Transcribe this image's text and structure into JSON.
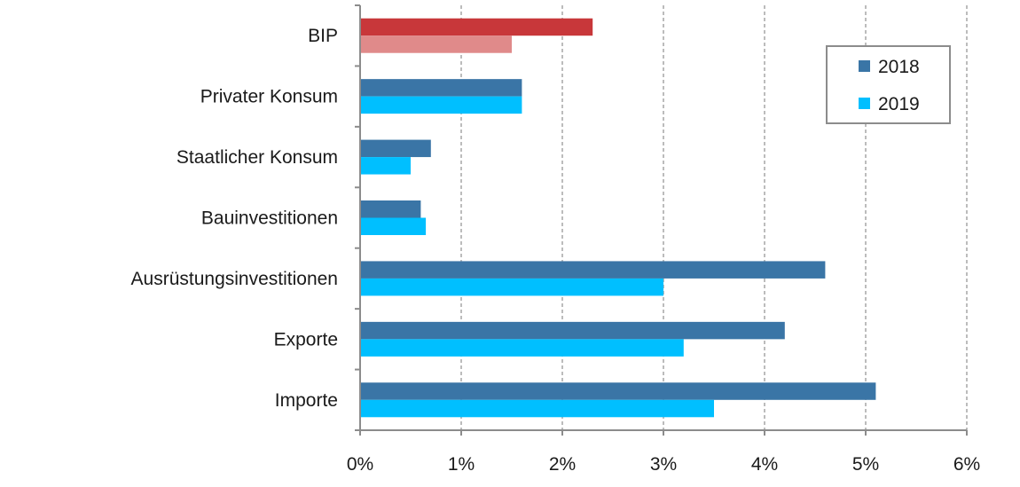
{
  "chart_data": {
    "type": "bar",
    "orientation": "horizontal",
    "categories": [
      "BIP",
      "Privater Konsum",
      "Staatlicher Konsum",
      "Bauinvestitionen",
      "Ausrüstungsinvestitionen",
      "Exporte",
      "Importe"
    ],
    "series": [
      {
        "name": "2018",
        "values": [
          2.3,
          1.6,
          0.7,
          0.6,
          4.6,
          4.2,
          5.1
        ]
      },
      {
        "name": "2019",
        "values": [
          1.5,
          1.6,
          0.5,
          0.65,
          3.0,
          3.2,
          3.5
        ]
      }
    ],
    "xticks": [
      "0%",
      "1%",
      "2%",
      "3%",
      "4%",
      "5%",
      "6%"
    ],
    "xlim": [
      0,
      6
    ],
    "grid": "vertical dashed",
    "legend": "top-right",
    "title": "",
    "xlabel": "",
    "ylabel": ""
  },
  "colors": {
    "series_2018": "#3a75a6",
    "series_2019": "#00bfff",
    "highlight_2018": "#c8373a",
    "highlight_2019": "#e08a8a",
    "grid": "#a6a6a6",
    "axis": "#8c8c8c"
  }
}
